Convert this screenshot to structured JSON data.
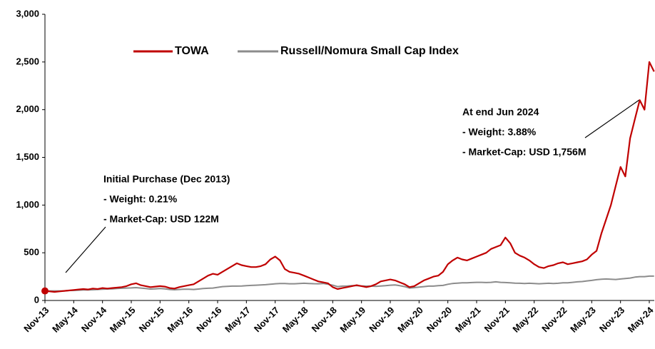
{
  "chart_data": {
    "type": "line",
    "categories": [
      "Nov-13",
      null,
      null,
      null,
      null,
      null,
      "May-14",
      null,
      null,
      null,
      null,
      null,
      "Nov-14",
      null,
      null,
      null,
      null,
      null,
      "May-15",
      null,
      null,
      null,
      null,
      null,
      "Nov-15",
      null,
      null,
      null,
      null,
      null,
      "May-16",
      null,
      null,
      null,
      null,
      null,
      "Nov-16",
      null,
      null,
      null,
      null,
      null,
      "May-17",
      null,
      null,
      null,
      null,
      null,
      "Nov-17",
      null,
      null,
      null,
      null,
      null,
      "May-18",
      null,
      null,
      null,
      null,
      null,
      "Nov-18",
      null,
      null,
      null,
      null,
      null,
      "May-19",
      null,
      null,
      null,
      null,
      null,
      "Nov-19",
      null,
      null,
      null,
      null,
      null,
      "May-20",
      null,
      null,
      null,
      null,
      null,
      "Nov-20",
      null,
      null,
      null,
      null,
      null,
      "May-21",
      null,
      null,
      null,
      null,
      null,
      "Nov-21",
      null,
      null,
      null,
      null,
      null,
      "May-22",
      null,
      null,
      null,
      null,
      null,
      "Nov-22",
      null,
      null,
      null,
      null,
      null,
      "May-23",
      null,
      null,
      null,
      null,
      null,
      "Nov-23",
      null,
      null,
      null,
      null,
      null,
      "May-24",
      null
    ],
    "series": [
      {
        "name": "TOWA",
        "color": "#c00000",
        "values": [
          100,
          95,
          90,
          95,
          100,
          105,
          110,
          115,
          120,
          115,
          125,
          120,
          130,
          125,
          130,
          135,
          140,
          150,
          170,
          180,
          160,
          150,
          140,
          145,
          150,
          145,
          130,
          125,
          140,
          150,
          160,
          170,
          200,
          230,
          260,
          280,
          270,
          300,
          330,
          360,
          390,
          370,
          360,
          350,
          350,
          360,
          380,
          430,
          460,
          420,
          330,
          300,
          290,
          280,
          260,
          240,
          220,
          200,
          190,
          180,
          140,
          120,
          130,
          140,
          150,
          160,
          150,
          140,
          150,
          170,
          200,
          210,
          220,
          210,
          190,
          170,
          140,
          150,
          180,
          210,
          230,
          250,
          260,
          300,
          380,
          420,
          450,
          430,
          420,
          440,
          460,
          480,
          500,
          540,
          560,
          580,
          660,
          600,
          500,
          470,
          450,
          420,
          380,
          350,
          340,
          360,
          370,
          390,
          400,
          380,
          390,
          400,
          410,
          430,
          480,
          520,
          700,
          850,
          1000,
          1200,
          1400,
          1300,
          1700,
          1900,
          2100,
          2000,
          2500,
          2400
        ]
      },
      {
        "name": "Russell/Nomura Small Cap Index",
        "color": "#8c8c8c",
        "values": [
          100,
          100,
          100,
          100,
          100,
          105,
          105,
          108,
          110,
          110,
          112,
          115,
          118,
          120,
          122,
          125,
          128,
          130,
          132,
          135,
          130,
          125,
          120,
          122,
          125,
          122,
          115,
          112,
          115,
          118,
          118,
          115,
          120,
          125,
          128,
          130,
          138,
          145,
          148,
          150,
          150,
          152,
          155,
          158,
          160,
          162,
          165,
          170,
          175,
          178,
          178,
          175,
          175,
          178,
          180,
          178,
          176,
          175,
          178,
          170,
          160,
          145,
          150,
          152,
          155,
          155,
          152,
          150,
          150,
          148,
          152,
          155,
          160,
          162,
          155,
          145,
          130,
          135,
          140,
          145,
          150,
          150,
          155,
          158,
          170,
          178,
          182,
          185,
          185,
          188,
          190,
          190,
          188,
          190,
          195,
          190,
          188,
          185,
          182,
          180,
          178,
          180,
          178,
          175,
          178,
          180,
          178,
          180,
          185,
          185,
          190,
          195,
          198,
          205,
          210,
          218,
          222,
          225,
          222,
          220,
          225,
          230,
          235,
          245,
          250,
          250,
          255,
          255
        ]
      }
    ],
    "ylim": [
      0,
      3000
    ],
    "yticks": [
      0,
      500,
      {
        "value": 1000,
        "label": "1,000"
      },
      {
        "value": 1500,
        "label": "1,500"
      },
      {
        "value": 2000,
        "label": "2,000"
      },
      {
        "value": 2500,
        "label": "2,500"
      },
      {
        "value": 3000,
        "label": "3,000"
      }
    ],
    "annotations": [
      {
        "lines": [
          "Initial Purchase (Dec 2013)",
          "- Weight: 0.21%",
          "- Market-Cap: USD 122M"
        ]
      },
      {
        "lines": [
          "At end Jun 2024",
          "- Weight: 3.88%",
          "- Market-Cap: USD 1,756M"
        ]
      }
    ]
  }
}
